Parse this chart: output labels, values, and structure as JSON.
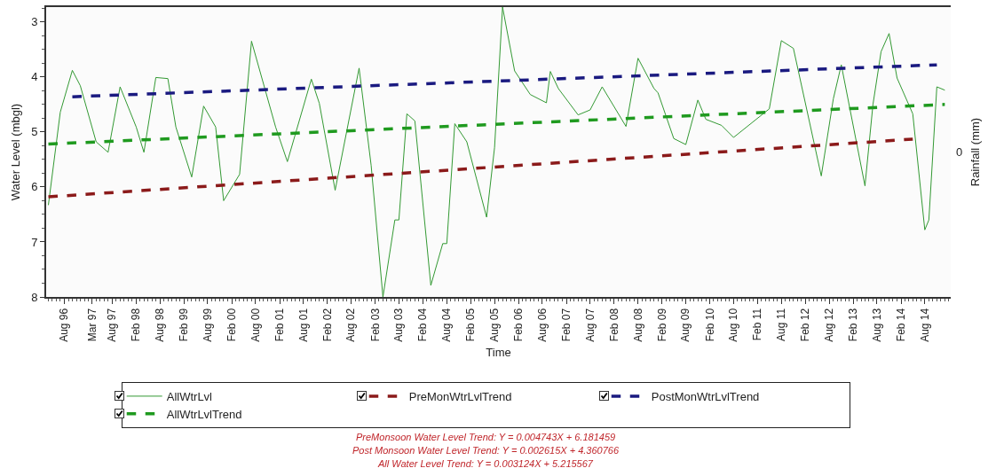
{
  "chart_data": {
    "type": "line",
    "xlabel": "Time",
    "ylabel": "Water Level (mbgl)",
    "y2label": "Rainfall (mm)",
    "xlim": [
      "1996-03-15",
      "2015-02-15"
    ],
    "xticks": [
      {
        "value": "1996-08-01",
        "label": "Aug 96"
      },
      {
        "value": "1997-03-01",
        "label": "Mar 97"
      },
      {
        "value": "1997-08-01",
        "label": "Aug 97"
      },
      {
        "value": "1998-02-01",
        "label": "Feb 98"
      },
      {
        "value": "1998-08-01",
        "label": "Aug 98"
      },
      {
        "value": "1999-02-01",
        "label": "Feb 99"
      },
      {
        "value": "1999-08-01",
        "label": "Aug 99"
      },
      {
        "value": "2000-02-01",
        "label": "Feb 00"
      },
      {
        "value": "2000-08-01",
        "label": "Aug 00"
      },
      {
        "value": "2001-02-01",
        "label": "Feb 01"
      },
      {
        "value": "2001-08-01",
        "label": "Aug 01"
      },
      {
        "value": "2002-02-01",
        "label": "Feb 02"
      },
      {
        "value": "2002-08-01",
        "label": "Aug 02"
      },
      {
        "value": "2003-02-01",
        "label": "Feb 03"
      },
      {
        "value": "2003-08-01",
        "label": "Aug 03"
      },
      {
        "value": "2004-02-01",
        "label": "Feb 04"
      },
      {
        "value": "2004-08-01",
        "label": "Aug 04"
      },
      {
        "value": "2005-02-01",
        "label": "Feb 05"
      },
      {
        "value": "2005-08-01",
        "label": "Aug 05"
      },
      {
        "value": "2006-02-01",
        "label": "Feb 06"
      },
      {
        "value": "2006-08-01",
        "label": "Aug 06"
      },
      {
        "value": "2007-02-01",
        "label": "Feb 07"
      },
      {
        "value": "2007-08-01",
        "label": "Aug 07"
      },
      {
        "value": "2008-02-01",
        "label": "Feb 08"
      },
      {
        "value": "2008-08-01",
        "label": "Aug 08"
      },
      {
        "value": "2009-02-01",
        "label": "Feb 09"
      },
      {
        "value": "2009-08-01",
        "label": "Aug 09"
      },
      {
        "value": "2010-02-01",
        "label": "Feb 10"
      },
      {
        "value": "2010-08-01",
        "label": "Aug 10"
      },
      {
        "value": "2011-02-01",
        "label": "Feb 11"
      },
      {
        "value": "2011-08-01",
        "label": "Aug 11"
      },
      {
        "value": "2012-02-01",
        "label": "Feb 12"
      },
      {
        "value": "2012-08-01",
        "label": "Aug 12"
      },
      {
        "value": "2013-02-01",
        "label": "Feb 13"
      },
      {
        "value": "2013-08-01",
        "label": "Aug 13"
      },
      {
        "value": "2014-02-01",
        "label": "Feb 14"
      },
      {
        "value": "2014-08-01",
        "label": "Aug 14"
      }
    ],
    "ylim": [
      8,
      2.73
    ],
    "yticks": [
      3,
      4,
      5,
      6,
      7,
      8
    ],
    "grid": false,
    "legend": "bottom",
    "marker": "none",
    "series": [
      {
        "name": "AllWtrLvl",
        "color": "#339933",
        "line_style": "solid",
        "x": [
          "1996-04",
          "1996-07",
          "1996-10",
          "1996-12",
          "1997-04",
          "1997-07",
          "1997-10",
          "1998-02",
          "1998-04",
          "1998-07",
          "1998-10",
          "1998-12",
          "1999-04",
          "1999-07",
          "1999-10",
          "1999-12",
          "2000-04",
          "2000-07",
          "2001-01",
          "2001-04",
          "2001-10",
          "2001-12",
          "2002-04",
          "2002-10",
          "2003-01",
          "2003-04",
          "2003-07",
          "2003-08",
          "2003-10",
          "2003-12",
          "2004-04",
          "2004-07",
          "2004-08",
          "2004-10",
          "2005-01",
          "2005-06",
          "2005-08",
          "2005-10",
          "2006-01",
          "2006-05",
          "2006-09",
          "2006-10",
          "2006-12",
          "2007-05",
          "2007-08",
          "2007-11",
          "2008-05",
          "2008-08",
          "2008-12",
          "2009-01",
          "2009-05",
          "2009-08",
          "2009-11",
          "2010-01",
          "2010-05",
          "2010-08",
          "2011-05",
          "2011-08",
          "2011-11",
          "2012-06",
          "2012-09",
          "2012-11",
          "2013-05",
          "2013-07",
          "2013-09",
          "2013-11",
          "2014-01",
          "2014-05",
          "2014-08",
          "2014-09",
          "2014-11",
          "2015-01"
        ],
        "values": [
          6.33,
          4.64,
          3.88,
          4.16,
          5.18,
          5.37,
          4.18,
          4.91,
          5.37,
          4.01,
          4.03,
          4.91,
          5.82,
          4.53,
          4.91,
          6.25,
          5.77,
          3.35,
          4.91,
          5.54,
          4.04,
          4.48,
          6.06,
          3.84,
          5.61,
          8.0,
          6.6,
          6.6,
          4.67,
          4.8,
          7.79,
          7.03,
          7.03,
          4.85,
          5.18,
          6.55,
          5.28,
          2.73,
          3.89,
          4.32,
          4.47,
          3.9,
          4.21,
          4.69,
          4.6,
          4.18,
          4.9,
          3.66,
          4.21,
          4.29,
          5.12,
          5.23,
          4.42,
          4.77,
          4.88,
          5.1,
          4.58,
          3.34,
          3.48,
          5.8,
          4.4,
          3.78,
          5.98,
          4.5,
          3.54,
          3.21,
          4.02,
          4.67,
          6.78,
          6.6,
          4.18,
          4.24
        ]
      },
      {
        "name": "PreMonWtrLvlTrend",
        "color": "#8b1a1a",
        "line_style": "dashed",
        "x": [
          "1996-04",
          "2014-05"
        ],
        "values": [
          6.18,
          5.13
        ]
      },
      {
        "name": "PostMonWtrLvlTrend",
        "color": "#1a1a80",
        "line_style": "dashed",
        "x": [
          "1996-10",
          "2014-11"
        ],
        "values": [
          4.36,
          3.78
        ]
      },
      {
        "name": "AllWtrLvlTrend",
        "color": "#1f9a1f",
        "line_style": "dashed",
        "x": [
          "1996-04",
          "2015-01"
        ],
        "values": [
          5.22,
          4.5
        ]
      }
    ],
    "annotations": [
      "0",
      "PreMonsoon Water Level Trend: Y = 0.004743X + 6.181459",
      "Post Monsoon Water Level Trend: Y = 0.002615X + 4.360766",
      "All Water Level Trend: Y = 0.003124X + 5.215567"
    ]
  }
}
